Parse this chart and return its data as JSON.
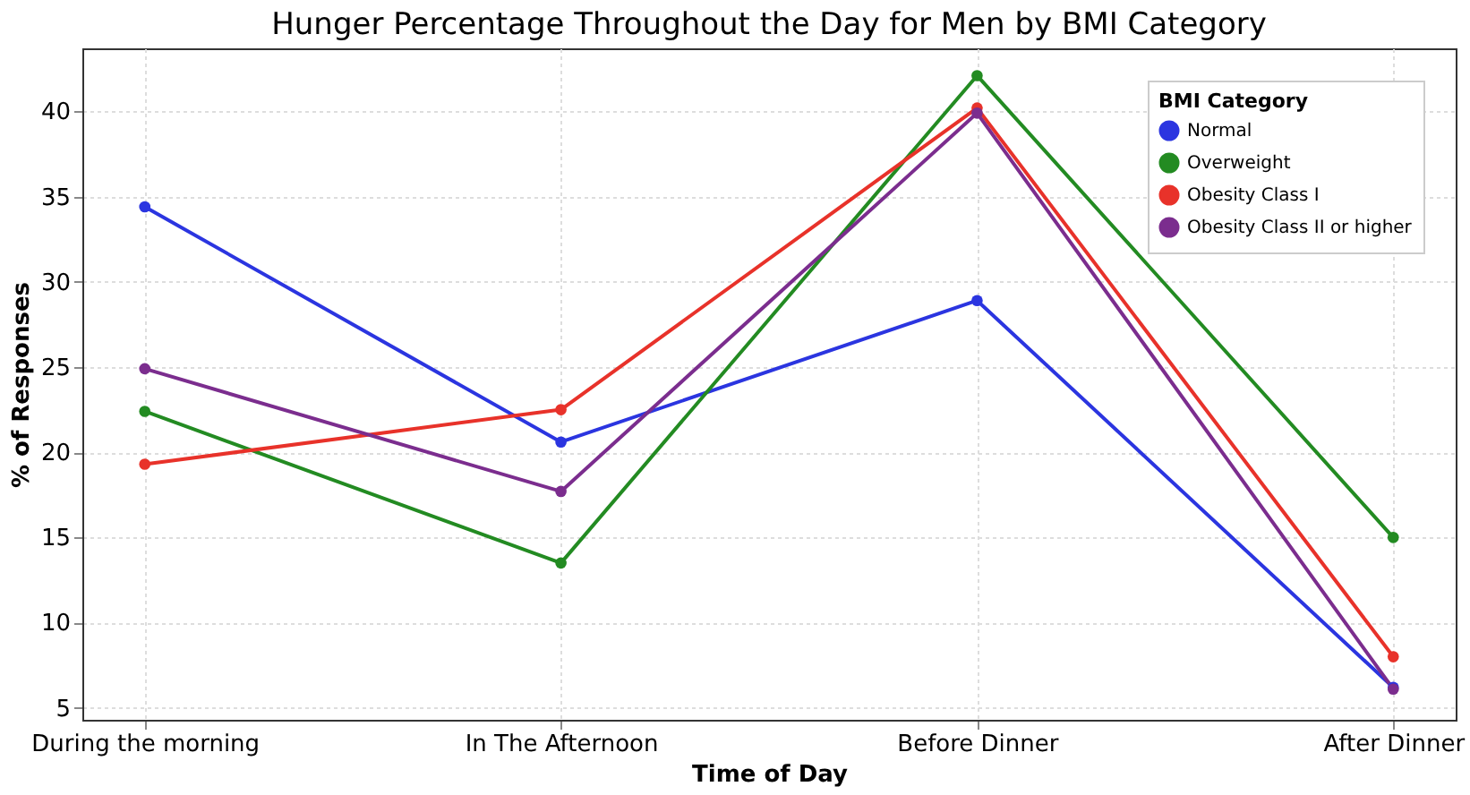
{
  "chart_data": {
    "type": "line",
    "title": "Hunger Percentage Throughout the Day for Men by BMI Category",
    "xlabel": "Time of Day",
    "ylabel": "% of Responses",
    "legend_title": "BMI Category",
    "categories": [
      "During the morning",
      "In The Afternoon",
      "Before Dinner",
      "After Dinner"
    ],
    "series": [
      {
        "name": "Normal",
        "color": "#2b35e0",
        "values": [
          34.4,
          20.6,
          28.9,
          6.2
        ]
      },
      {
        "name": "Overweight",
        "color": "#238b22",
        "values": [
          22.4,
          13.5,
          42.1,
          15.0
        ]
      },
      {
        "name": "Obesity Class I",
        "color": "#e8322a",
        "values": [
          19.3,
          22.5,
          40.2,
          8.0
        ]
      },
      {
        "name": "Obesity Class II or higher",
        "color": "#7b2d8e",
        "values": [
          24.9,
          17.7,
          39.9,
          6.1
        ]
      }
    ],
    "ylim": [
      4.3,
      43.7
    ],
    "yticks": [
      5,
      10,
      15,
      20,
      25,
      30,
      35,
      40
    ],
    "grid": true,
    "legend": "top right",
    "marker": "circle",
    "line_style": "solid"
  }
}
